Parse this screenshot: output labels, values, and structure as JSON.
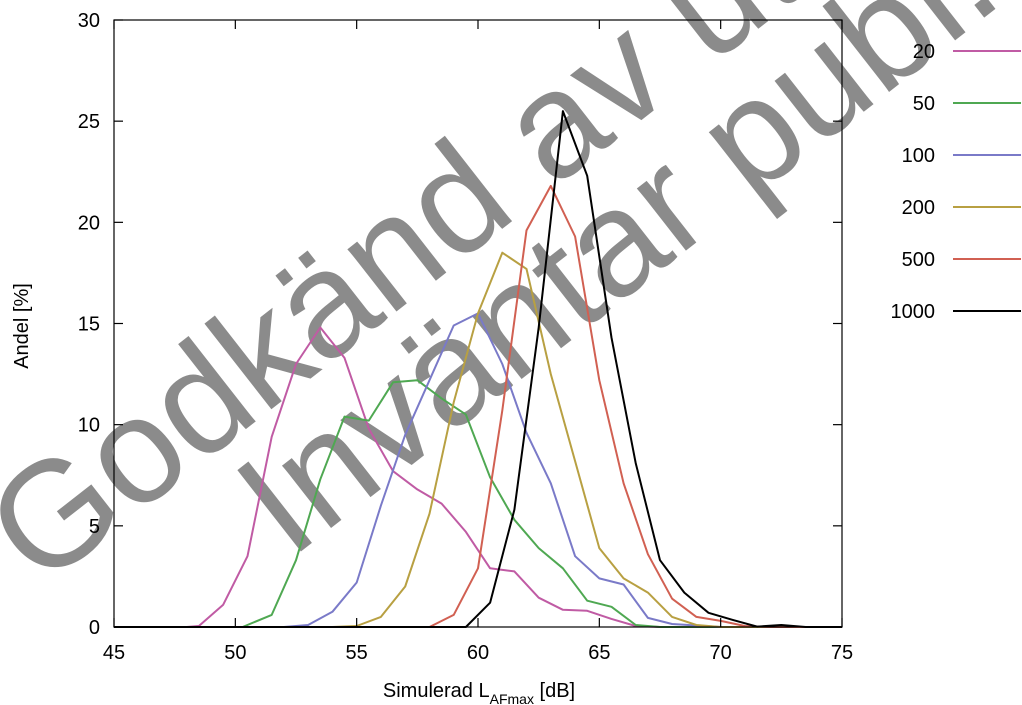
{
  "chart_data": {
    "type": "line",
    "xlabel": "Simulerad L",
    "xlabel_subscript": "AFmax",
    "xlabel_suffix": " [dB]",
    "ylabel": "Andel [%]",
    "xlim": [
      45,
      75
    ],
    "ylim": [
      0,
      30
    ],
    "xticks": [
      45,
      50,
      55,
      60,
      65,
      70,
      75
    ],
    "yticks": [
      0,
      5,
      10,
      15,
      20,
      25,
      30
    ],
    "grid": false,
    "legend_position": "right",
    "watermark": [
      "Godkänd av utf...",
      "Inväntar publ..."
    ],
    "series": [
      {
        "name": "20",
        "color": "#c05ba4",
        "x": [
          45,
          46,
          47,
          48,
          48.5,
          49.5,
          50.5,
          51.5,
          52.5,
          53.5,
          54.5,
          55.5,
          56.5,
          57.5,
          58.5,
          59.5,
          60.5,
          61.5,
          62.5,
          63.5,
          64.5,
          65.5,
          66.5,
          67.5,
          68.5,
          70,
          72,
          75
        ],
        "y": [
          0,
          0,
          0,
          0,
          0.05,
          1.1,
          3.5,
          9.4,
          13.0,
          14.8,
          13.3,
          9.8,
          7.7,
          6.8,
          6.1,
          4.7,
          2.9,
          2.75,
          1.45,
          0.85,
          0.8,
          0.4,
          0.05,
          0,
          0,
          0,
          0,
          0
        ]
      },
      {
        "name": "50",
        "color": "#4fa852",
        "x": [
          45,
          48,
          50.3,
          51.5,
          52.5,
          53.5,
          54.5,
          55.5,
          56.5,
          57.5,
          58.5,
          59.5,
          60.5,
          61.5,
          62.5,
          63.5,
          64.5,
          65.5,
          66.5,
          67.5,
          70,
          75
        ],
        "y": [
          0,
          0,
          0,
          0.6,
          3.3,
          7.3,
          10.4,
          10.2,
          12.1,
          12.2,
          11.3,
          10.5,
          7.4,
          5.3,
          3.9,
          2.9,
          1.3,
          1.0,
          0.1,
          0,
          0,
          0
        ]
      },
      {
        "name": "100",
        "color": "#7a7ac8",
        "x": [
          45,
          50,
          52,
          53,
          54,
          55,
          56,
          57,
          58,
          59,
          60,
          61,
          62,
          63,
          64,
          65,
          66,
          67,
          68,
          70,
          75
        ],
        "y": [
          0,
          0,
          0,
          0.1,
          0.75,
          2.2,
          6.0,
          9.5,
          12.2,
          14.9,
          15.5,
          13.0,
          9.6,
          7.1,
          3.5,
          2.4,
          2.1,
          0.45,
          0.15,
          0,
          0
        ]
      },
      {
        "name": "200",
        "color": "#b8a042",
        "x": [
          45,
          52,
          54,
          55,
          56,
          57,
          58,
          59,
          60,
          61,
          62,
          63,
          64,
          65,
          66,
          67,
          68,
          69,
          70,
          75
        ],
        "y": [
          0,
          0,
          0,
          0.05,
          0.5,
          2.0,
          5.6,
          11.1,
          15.5,
          18.5,
          17.7,
          12.5,
          8.2,
          3.9,
          2.4,
          1.7,
          0.5,
          0.1,
          0,
          0
        ]
      },
      {
        "name": "500",
        "color": "#d16052",
        "x": [
          45,
          57,
          58,
          59,
          60,
          61,
          62,
          63,
          64,
          65,
          66,
          67,
          68,
          69,
          70,
          71,
          72,
          75
        ],
        "y": [
          0,
          0,
          0,
          0.6,
          2.9,
          10.7,
          19.6,
          21.8,
          19.3,
          12.2,
          7.1,
          3.6,
          1.4,
          0.5,
          0.3,
          0.05,
          0,
          0
        ]
      },
      {
        "name": "1000",
        "color": "#000000",
        "x": [
          45,
          59.5,
          60.5,
          61.5,
          62.5,
          63.5,
          64.5,
          65.5,
          66.5,
          67.5,
          68.5,
          69.5,
          70.5,
          71.5,
          72.5,
          73.5,
          75
        ],
        "y": [
          0,
          0,
          1.2,
          5.8,
          14.8,
          25.5,
          22.3,
          14.3,
          8.1,
          3.3,
          1.7,
          0.7,
          0.35,
          0.02,
          0.1,
          0,
          0
        ]
      }
    ]
  }
}
